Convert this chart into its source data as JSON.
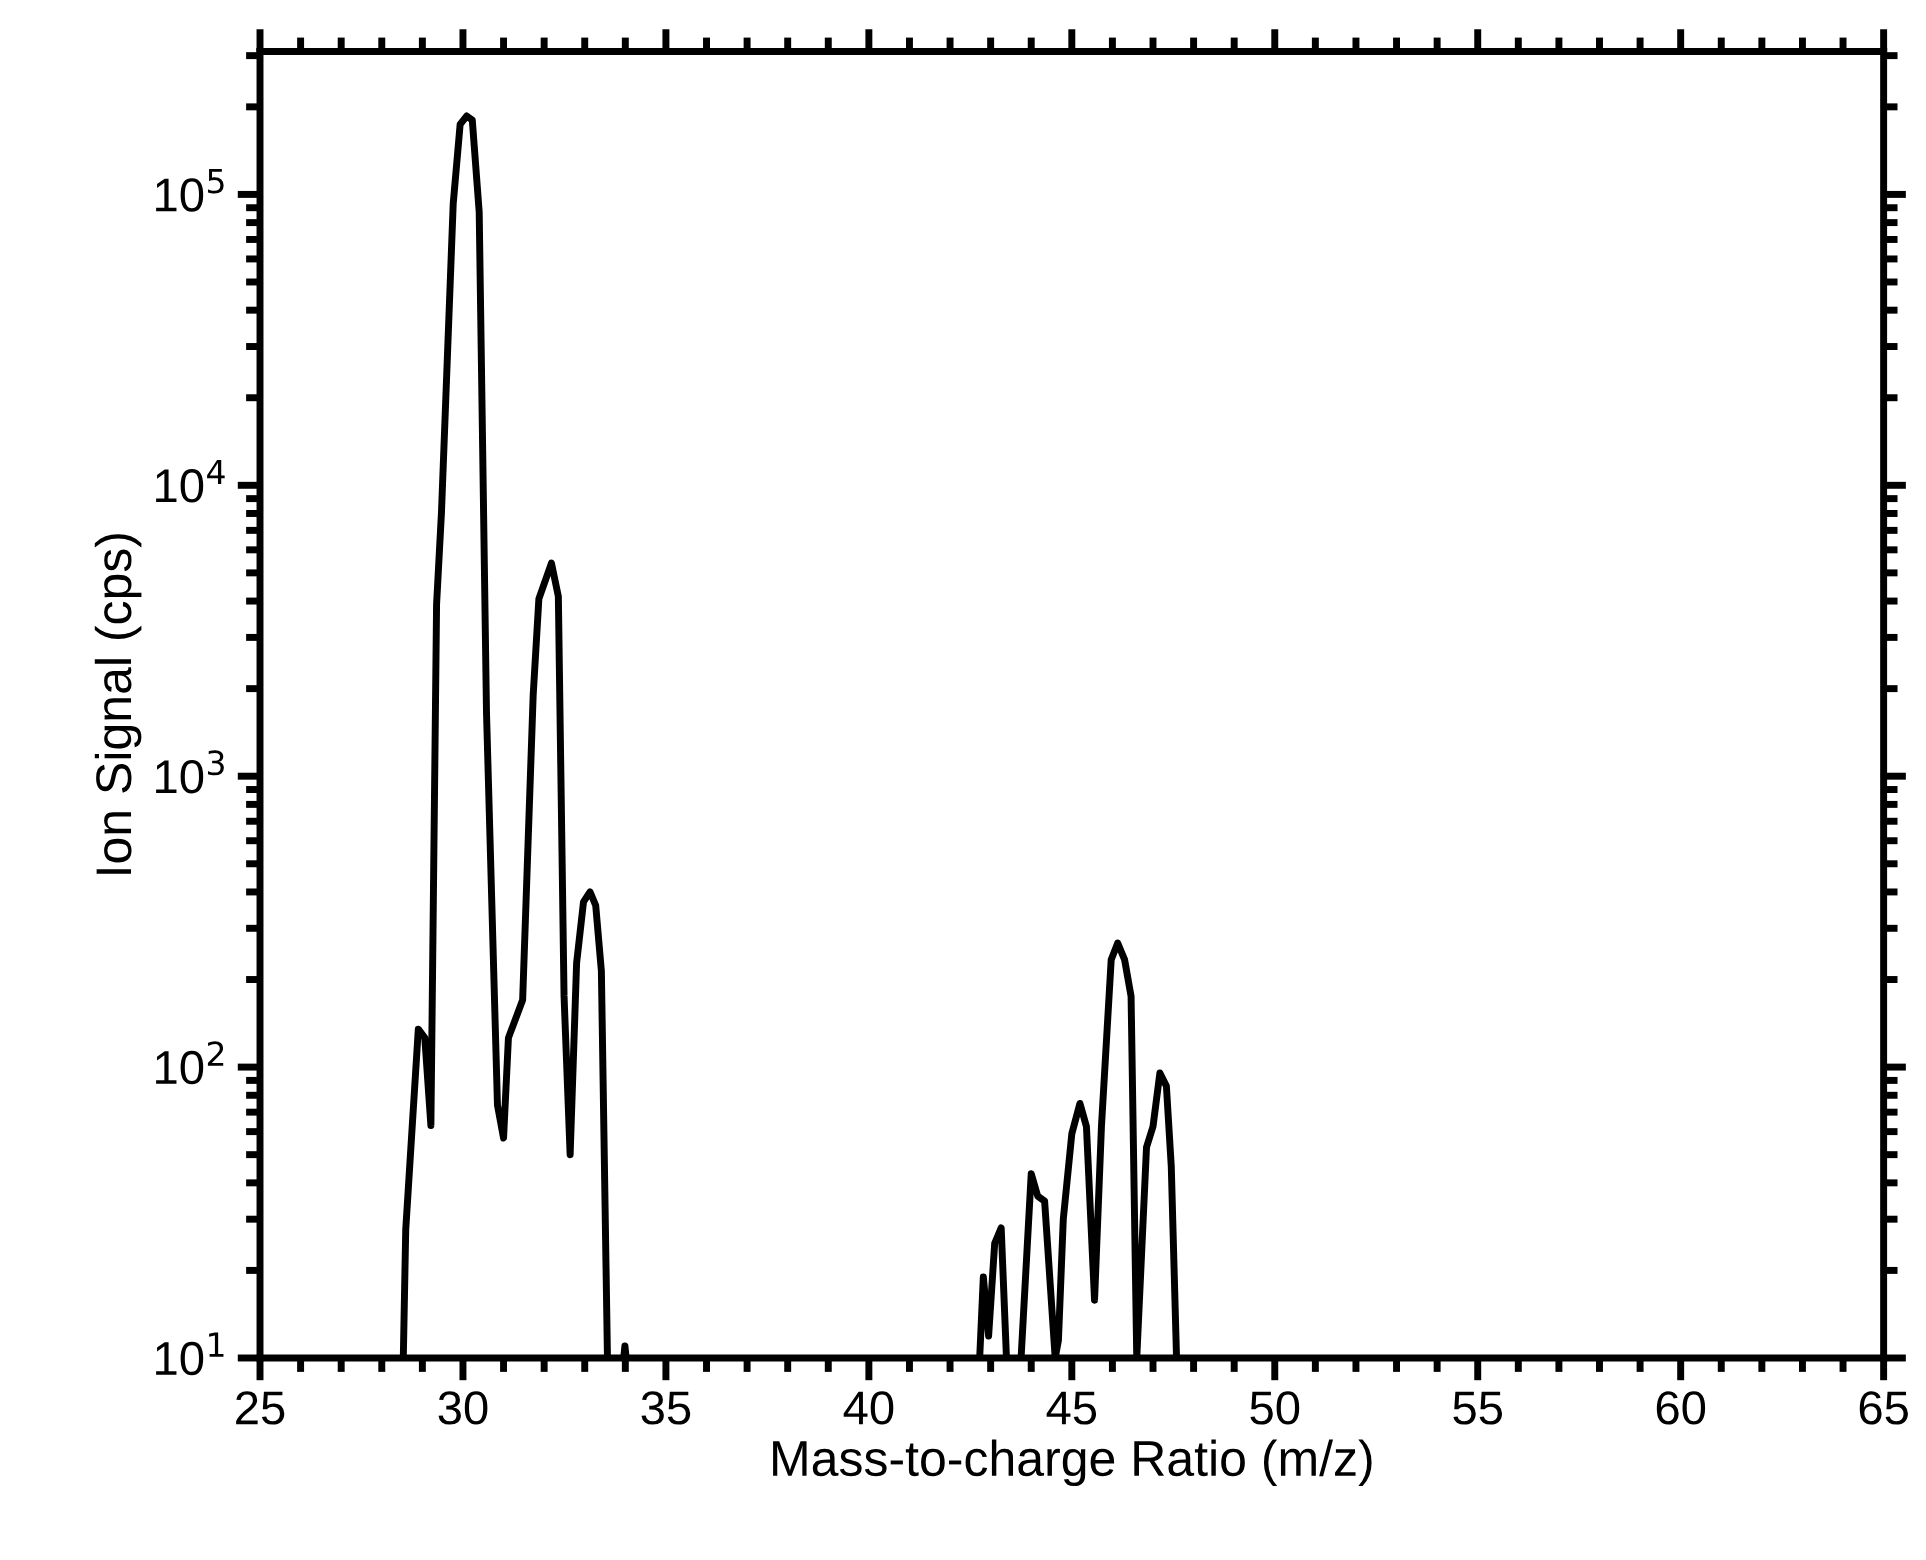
{
  "chart_data": {
    "type": "line",
    "xlabel": "Mass-to-charge Ratio (m/z)",
    "ylabel": "Ion Signal (cps)",
    "log": "y",
    "grid": false,
    "marker": "none",
    "line_style": "solid",
    "xlim": [
      25,
      65
    ],
    "ylim": [
      10,
      310000
    ],
    "xticks": [
      25,
      {
        "value": 26,
        "label": null
      },
      {
        "value": 27,
        "label": null
      },
      {
        "value": 28,
        "label": null
      },
      {
        "value": 29,
        "label": null
      },
      30,
      {
        "value": 31,
        "label": null
      },
      {
        "value": 32,
        "label": null
      },
      {
        "value": 33,
        "label": null
      },
      {
        "value": 34,
        "label": null
      },
      35,
      {
        "value": 36,
        "label": null
      },
      {
        "value": 37,
        "label": null
      },
      {
        "value": 38,
        "label": null
      },
      {
        "value": 39,
        "label": null
      },
      40,
      {
        "value": 41,
        "label": null
      },
      {
        "value": 42,
        "label": null
      },
      {
        "value": 43,
        "label": null
      },
      {
        "value": 44,
        "label": null
      },
      45,
      {
        "value": 46,
        "label": null
      },
      {
        "value": 47,
        "label": null
      },
      {
        "value": 48,
        "label": null
      },
      {
        "value": 49,
        "label": null
      },
      50,
      {
        "value": 51,
        "label": null
      },
      {
        "value": 52,
        "label": null
      },
      {
        "value": 53,
        "label": null
      },
      {
        "value": 54,
        "label": null
      },
      55,
      {
        "value": 56,
        "label": null
      },
      {
        "value": 57,
        "label": null
      },
      {
        "value": 58,
        "label": null
      },
      {
        "value": 59,
        "label": null
      },
      60,
      {
        "value": 61,
        "label": null
      },
      {
        "value": 62,
        "label": null
      },
      {
        "value": 63,
        "label": null
      },
      {
        "value": 64,
        "label": null
      },
      65
    ],
    "yticks": [
      {
        "value": 10,
        "label": "10$^{1}$"
      },
      {
        "value": 20,
        "label": null
      },
      {
        "value": 30,
        "label": null
      },
      {
        "value": 40,
        "label": null
      },
      {
        "value": 50,
        "label": null
      },
      {
        "value": 60,
        "label": null
      },
      {
        "value": 70,
        "label": null
      },
      {
        "value": 80,
        "label": null
      },
      {
        "value": 90,
        "label": null
      },
      {
        "value": 100,
        "label": "10$^{2}$"
      },
      {
        "value": 200,
        "label": null
      },
      {
        "value": 300,
        "label": null
      },
      {
        "value": 400,
        "label": null
      },
      {
        "value": 500,
        "label": null
      },
      {
        "value": 600,
        "label": null
      },
      {
        "value": 700,
        "label": null
      },
      {
        "value": 800,
        "label": null
      },
      {
        "value": 900,
        "label": null
      },
      {
        "value": 1000,
        "label": "10$^{3}$"
      },
      {
        "value": 2000,
        "label": null
      },
      {
        "value": 3000,
        "label": null
      },
      {
        "value": 4000,
        "label": null
      },
      {
        "value": 5000,
        "label": null
      },
      {
        "value": 6000,
        "label": null
      },
      {
        "value": 7000,
        "label": null
      },
      {
        "value": 8000,
        "label": null
      },
      {
        "value": 9000,
        "label": null
      },
      {
        "value": 10000,
        "label": "10$^{4}$"
      },
      {
        "value": 20000,
        "label": null
      },
      {
        "value": 30000,
        "label": null
      },
      {
        "value": 40000,
        "label": null
      },
      {
        "value": 50000,
        "label": null
      },
      {
        "value": 60000,
        "label": null
      },
      {
        "value": 70000,
        "label": null
      },
      {
        "value": 80000,
        "label": null
      },
      {
        "value": 90000,
        "label": null
      },
      {
        "value": 100000,
        "label": "10$^{5}$"
      },
      {
        "value": 200000,
        "label": null
      },
      {
        "value": 300000,
        "label": null
      }
    ],
    "series": [
      {
        "color": "#000000",
        "x": [
          28.53,
          28.59,
          28.9,
          29.06,
          29.21,
          29.35,
          29.47,
          29.76,
          29.93,
          30.09,
          30.23,
          30.4,
          30.58,
          30.85,
          31.0,
          31.12,
          31.47,
          31.73,
          31.87,
          32.18,
          32.35,
          32.49,
          32.64,
          32.8,
          32.97,
          33.13,
          33.27,
          33.41,
          33.56,
          33.8,
          33.96,
          33.99,
          34.02,
          38.0,
          42.73,
          42.82,
          42.95,
          43.1,
          43.26,
          43.39,
          43.6,
          43.75,
          44.0,
          44.16,
          44.33,
          44.59,
          44.67,
          44.79,
          45.0,
          45.2,
          45.36,
          45.56,
          45.73,
          45.97,
          46.13,
          46.3,
          46.46,
          46.6,
          46.84,
          47.0,
          47.17,
          47.33,
          47.45,
          47.58
        ],
        "values": [
          10,
          27.6,
          135,
          126,
          63,
          3900,
          8050,
          93000,
          174000,
          186000,
          180000,
          87000,
          1650,
          74,
          57,
          126,
          170,
          1900,
          4070,
          5400,
          4150,
          176,
          50,
          228,
          370,
          400,
          360,
          214,
          10,
          null,
          10,
          11,
          10,
          null,
          10,
          19,
          11.9,
          24.8,
          28,
          10,
          null,
          10,
          43,
          36,
          34.6,
          10,
          11.5,
          30,
          59,
          75,
          62.5,
          15.8,
          62.5,
          234,
          267,
          234,
          175,
          10,
          53,
          62.5,
          95.5,
          86,
          45.6,
          10
        ]
      }
    ]
  }
}
